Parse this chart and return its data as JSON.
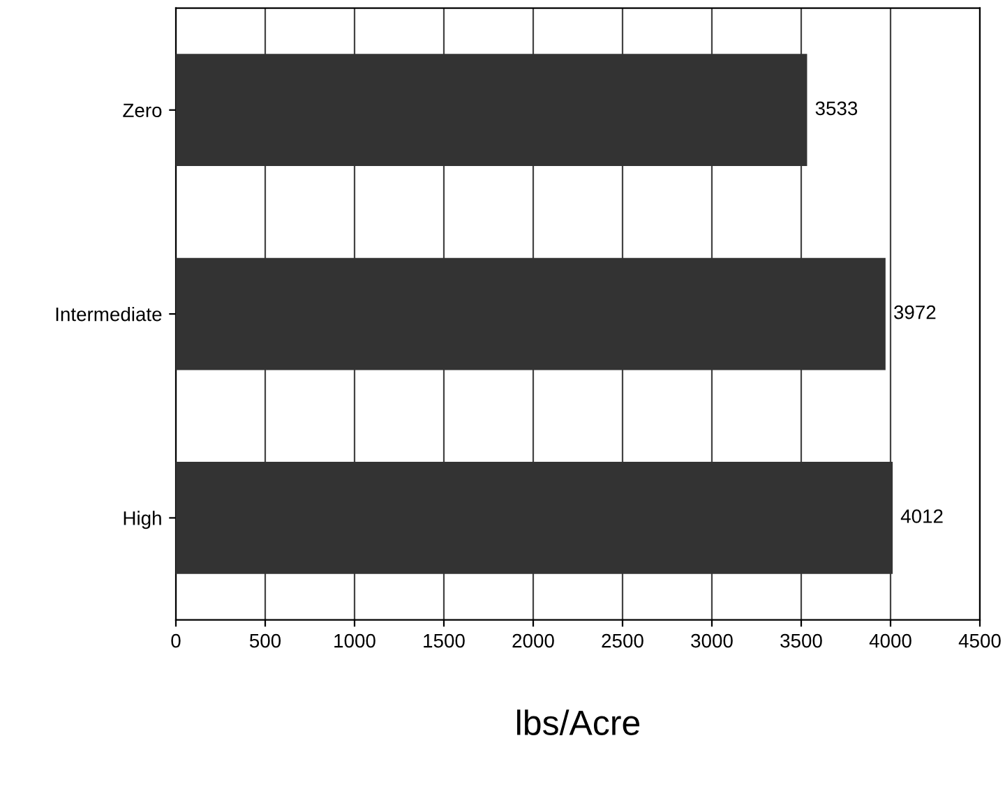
{
  "chart_data": {
    "type": "bar",
    "orientation": "horizontal",
    "categories": [
      "Zero",
      "Intermediate",
      "High"
    ],
    "values": [
      3533,
      3972,
      4012
    ],
    "color": "#333333",
    "xlim": [
      0,
      4500
    ],
    "xticks": [
      0,
      500,
      1000,
      1500,
      2000,
      2500,
      3000,
      3500,
      4000,
      4500
    ],
    "xlabel": "lbs/Acre",
    "grid": "x",
    "data_labels": true
  }
}
